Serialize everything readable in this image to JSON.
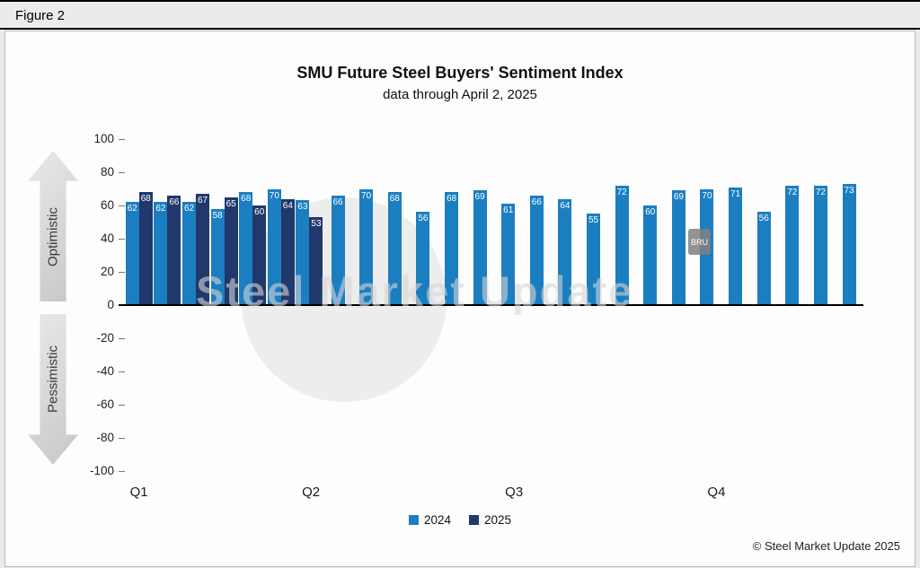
{
  "figure_label": "Figure 2",
  "header": {
    "title": "SMU Future Steel Buyers' Sentiment Index",
    "subtitle": "data through April 2, 2025"
  },
  "axis": {
    "y_ticks": [
      100,
      80,
      60,
      40,
      20,
      0,
      -20,
      -40,
      -60,
      -80,
      -100
    ],
    "x_labels": [
      "Q1",
      "Q2",
      "Q3",
      "Q4"
    ],
    "optimistic": "Optimistic",
    "pessimistic": "Pessimistic"
  },
  "legend": [
    {
      "label": "2024",
      "color": "#1b7ec0"
    },
    {
      "label": "2025",
      "color": "#20386b"
    }
  ],
  "watermark": {
    "text": "Steel Market Update",
    "badge": "BRU"
  },
  "footer": {
    "copyright": "© Steel Market Update 2025"
  },
  "chart_data": {
    "type": "bar",
    "title": "SMU Future Steel Buyers' Sentiment Index",
    "subtitle": "data through April 2, 2025",
    "xlabel": "",
    "ylabel": "",
    "ylim": [
      -100,
      100
    ],
    "grid": false,
    "legend_position": "bottom",
    "bar_value_labels": true,
    "x_labels": [
      "Q1",
      "Q2",
      "Q3",
      "Q4"
    ],
    "series": [
      {
        "name": "2024",
        "color": "#1b7ec0",
        "values": [
          62,
          62,
          62,
          58,
          68,
          70,
          63,
          66,
          70,
          68,
          56,
          68,
          69,
          61,
          66,
          64,
          55,
          72,
          60,
          69,
          70,
          71,
          56,
          72,
          72,
          73
        ]
      },
      {
        "name": "2025",
        "color": "#20386b",
        "values": [
          68,
          66,
          67,
          65,
          60,
          64,
          53
        ]
      }
    ]
  }
}
